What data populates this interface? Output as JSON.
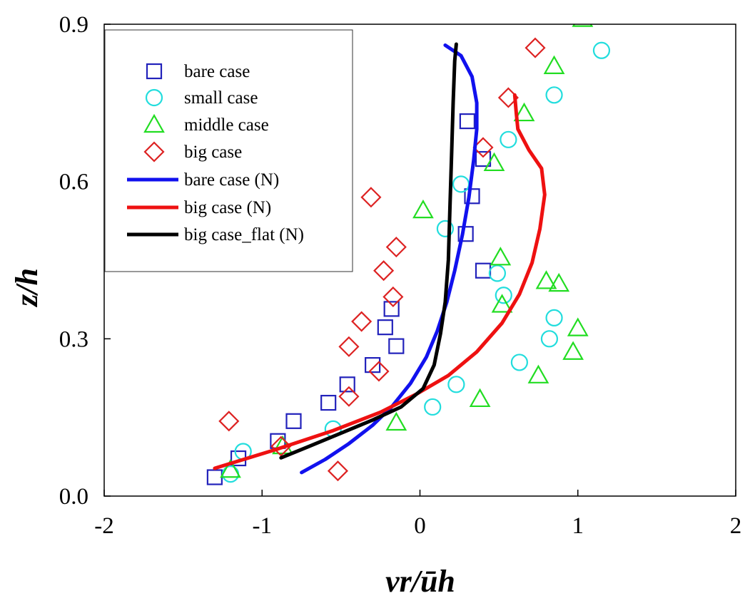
{
  "chart_data": {
    "type": "scatter",
    "title": "",
    "xlabel": "vr/ūh",
    "ylabel": "z/h",
    "xlim": [
      -2,
      2
    ],
    "ylim": [
      0,
      0.9
    ],
    "xticks": [
      -2,
      -1,
      0,
      1,
      2
    ],
    "xtick_labels": [
      "-2",
      "-1",
      "0",
      "1",
      "2"
    ],
    "yticks": [
      0,
      0.3,
      0.6,
      0.9
    ],
    "ytick_labels": [
      "0.0",
      "0.3",
      "0.6",
      "0.9"
    ],
    "legend_position": "top-left",
    "series": [
      {
        "name": "bare case",
        "kind": "square",
        "color": "#2222bb",
        "points": [
          [
            -1.3,
            0.036
          ],
          [
            -1.15,
            0.072
          ],
          [
            -0.9,
            0.105
          ],
          [
            -0.8,
            0.143
          ],
          [
            -0.58,
            0.178
          ],
          [
            -0.46,
            0.213
          ],
          [
            -0.3,
            0.25
          ],
          [
            -0.22,
            0.322
          ],
          [
            -0.15,
            0.286
          ],
          [
            -0.18,
            0.357
          ],
          [
            0.3,
            0.715
          ],
          [
            0.4,
            0.643
          ],
          [
            0.33,
            0.572
          ],
          [
            0.29,
            0.5
          ],
          [
            0.4,
            0.43
          ]
        ]
      },
      {
        "name": "small case",
        "kind": "circle",
        "color": "#22dddd",
        "points": [
          [
            -1.2,
            0.042
          ],
          [
            -1.12,
            0.085
          ],
          [
            -0.55,
            0.128
          ],
          [
            0.08,
            0.17
          ],
          [
            0.23,
            0.213
          ],
          [
            0.63,
            0.255
          ],
          [
            0.82,
            0.3
          ],
          [
            0.85,
            0.34
          ],
          [
            0.53,
            0.383
          ],
          [
            0.49,
            0.425
          ],
          [
            0.16,
            0.51
          ],
          [
            0.26,
            0.595
          ],
          [
            0.56,
            0.68
          ],
          [
            0.85,
            0.765
          ],
          [
            1.15,
            0.85
          ]
        ]
      },
      {
        "name": "middle case",
        "kind": "triangle",
        "color": "#22dd22",
        "points": [
          [
            -1.2,
            0.05
          ],
          [
            -0.87,
            0.095
          ],
          [
            -0.15,
            0.14
          ],
          [
            0.38,
            0.185
          ],
          [
            0.75,
            0.23
          ],
          [
            0.97,
            0.275
          ],
          [
            1.0,
            0.32
          ],
          [
            0.52,
            0.365
          ],
          [
            0.88,
            0.405
          ],
          [
            0.8,
            0.41
          ],
          [
            0.51,
            0.455
          ],
          [
            0.02,
            0.545
          ],
          [
            0.47,
            0.635
          ],
          [
            0.66,
            0.73
          ],
          [
            0.85,
            0.82
          ],
          [
            1.03,
            0.91
          ]
        ]
      },
      {
        "name": "big case",
        "kind": "diamond",
        "color": "#dd2222",
        "points": [
          [
            -1.21,
            0.143
          ],
          [
            -0.88,
            0.095
          ],
          [
            -0.52,
            0.048
          ],
          [
            -0.45,
            0.19
          ],
          [
            -0.26,
            0.238
          ],
          [
            -0.45,
            0.285
          ],
          [
            -0.37,
            0.333
          ],
          [
            -0.17,
            0.38
          ],
          [
            -0.23,
            0.43
          ],
          [
            -0.15,
            0.475
          ],
          [
            -0.31,
            0.57
          ],
          [
            0.4,
            0.665
          ],
          [
            0.56,
            0.76
          ],
          [
            0.73,
            0.855
          ]
        ]
      },
      {
        "name": "bare case (N)",
        "kind": "line",
        "color": "#1111ee",
        "points": [
          [
            -0.75,
            0.045
          ],
          [
            -0.6,
            0.07
          ],
          [
            -0.45,
            0.1
          ],
          [
            -0.3,
            0.135
          ],
          [
            -0.18,
            0.17
          ],
          [
            -0.06,
            0.215
          ],
          [
            0.04,
            0.265
          ],
          [
            0.11,
            0.315
          ],
          [
            0.17,
            0.37
          ],
          [
            0.22,
            0.43
          ],
          [
            0.27,
            0.5
          ],
          [
            0.31,
            0.57
          ],
          [
            0.34,
            0.64
          ],
          [
            0.36,
            0.7
          ],
          [
            0.36,
            0.75
          ],
          [
            0.33,
            0.8
          ],
          [
            0.26,
            0.84
          ],
          [
            0.16,
            0.86
          ]
        ]
      },
      {
        "name": "big case (N)",
        "kind": "line",
        "color": "#ee1111",
        "points": [
          [
            -1.3,
            0.053
          ],
          [
            -0.9,
            0.09
          ],
          [
            -0.55,
            0.125
          ],
          [
            -0.25,
            0.16
          ],
          [
            -0.02,
            0.195
          ],
          [
            0.18,
            0.23
          ],
          [
            0.36,
            0.275
          ],
          [
            0.52,
            0.33
          ],
          [
            0.63,
            0.385
          ],
          [
            0.71,
            0.445
          ],
          [
            0.76,
            0.51
          ],
          [
            0.79,
            0.575
          ],
          [
            0.77,
            0.625
          ],
          [
            0.69,
            0.66
          ],
          [
            0.62,
            0.7
          ],
          [
            0.61,
            0.73
          ],
          [
            0.6,
            0.765
          ]
        ]
      },
      {
        "name": "big case_flat (N)",
        "kind": "line",
        "color": "#000000",
        "points": [
          [
            -0.88,
            0.073
          ],
          [
            -0.7,
            0.095
          ],
          [
            -0.5,
            0.12
          ],
          [
            -0.3,
            0.145
          ],
          [
            -0.12,
            0.17
          ],
          [
            0.02,
            0.205
          ],
          [
            0.09,
            0.25
          ],
          [
            0.13,
            0.31
          ],
          [
            0.16,
            0.37
          ],
          [
            0.18,
            0.45
          ],
          [
            0.19,
            0.55
          ],
          [
            0.2,
            0.65
          ],
          [
            0.21,
            0.75
          ],
          [
            0.22,
            0.83
          ],
          [
            0.23,
            0.862
          ]
        ]
      }
    ]
  }
}
